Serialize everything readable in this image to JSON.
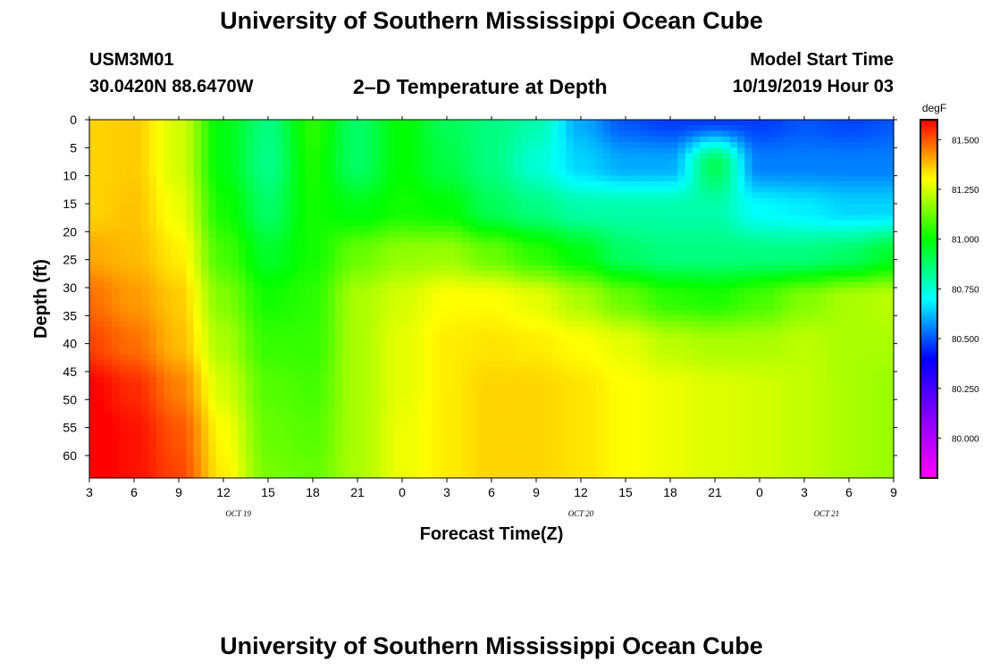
{
  "header": {
    "title_top": "University of Southern Mississippi Ocean Cube",
    "title_bottom": "University of Southern Mississippi Ocean Cube",
    "station_id": "USM3M01",
    "location": "30.0420N 88.6470W",
    "plot_title": "2–D Temperature at Depth",
    "model_label": "Model Start Time",
    "model_start": "10/19/2019 Hour 03"
  },
  "chart_data": {
    "type": "heatmap",
    "title": "2–D Temperature at Depth",
    "xlabel": "Forecast Time(Z)",
    "ylabel": "Depth (ft)",
    "x_tick_labels": [
      "3",
      "6",
      "9",
      "12",
      "15",
      "18",
      "21",
      "0",
      "3",
      "6",
      "9",
      "12",
      "15",
      "18",
      "21",
      "0",
      "3",
      "6",
      "9"
    ],
    "x_hours_from_start": [
      0,
      3,
      6,
      9,
      12,
      15,
      18,
      21,
      24,
      27,
      30,
      33,
      36,
      39,
      42,
      45,
      48,
      51,
      54
    ],
    "date_labels": [
      {
        "text": "OCT 19",
        "hour": 10
      },
      {
        "text": "OCT 20",
        "hour": 33
      },
      {
        "text": "OCT 21",
        "hour": 49.5
      }
    ],
    "y_ticks": [
      0,
      5,
      10,
      15,
      20,
      25,
      30,
      35,
      40,
      45,
      50,
      55,
      60
    ],
    "ylim": [
      0,
      64
    ],
    "xlim": [
      0,
      54
    ],
    "colorbar": {
      "unit": "degF",
      "range": [
        79.8,
        81.6
      ],
      "ticks": [
        80.0,
        80.25,
        80.5,
        80.75,
        81.0,
        81.25,
        81.5
      ],
      "tick_labels": [
        "80.000",
        "80.250",
        "80.500",
        "80.750",
        "81.000",
        "81.250",
        "81.500"
      ],
      "colors": [
        "#ff00ff",
        "#8800ff",
        "#0000ff",
        "#00ffff",
        "#00ff00",
        "#ffff00",
        "#ff0000"
      ]
    },
    "depths_ft": [
      0,
      8,
      16,
      24,
      32,
      40,
      48,
      56,
      64
    ],
    "temperature_grid": [
      [
        81.35,
        81.36,
        81.25,
        80.98,
        80.85,
        81.05,
        80.88,
        81.0,
        80.9,
        80.85,
        80.8,
        80.6,
        80.5,
        80.47,
        80.47,
        80.47,
        80.5,
        80.48,
        80.5
      ],
      [
        81.35,
        81.36,
        81.25,
        80.98,
        80.84,
        81.03,
        80.88,
        81.0,
        80.92,
        80.85,
        80.75,
        80.65,
        80.6,
        80.6,
        80.9,
        80.55,
        80.55,
        80.55,
        80.55
      ],
      [
        81.35,
        81.37,
        81.28,
        81.02,
        80.88,
        81.02,
        80.98,
        81.02,
        81.0,
        80.9,
        80.85,
        80.8,
        80.8,
        80.8,
        80.8,
        80.7,
        80.68,
        80.65,
        80.65
      ],
      [
        81.4,
        81.38,
        81.32,
        81.08,
        80.95,
        81.02,
        81.12,
        81.17,
        81.18,
        81.12,
        81.05,
        80.98,
        80.88,
        80.85,
        80.85,
        80.85,
        80.85,
        80.88,
        80.95
      ],
      [
        81.47,
        81.42,
        81.36,
        81.15,
        81.02,
        81.05,
        81.2,
        81.25,
        81.3,
        81.3,
        81.27,
        81.2,
        81.12,
        81.05,
        81.03,
        81.08,
        81.15,
        81.2,
        81.22
      ],
      [
        81.52,
        81.47,
        81.38,
        81.2,
        81.06,
        81.06,
        81.2,
        81.27,
        81.32,
        81.33,
        81.32,
        81.3,
        81.27,
        81.22,
        81.2,
        81.2,
        81.22,
        81.2,
        81.2
      ],
      [
        81.6,
        81.55,
        81.45,
        81.25,
        81.1,
        81.08,
        81.2,
        81.27,
        81.32,
        81.35,
        81.35,
        81.33,
        81.3,
        81.28,
        81.26,
        81.25,
        81.23,
        81.2,
        81.18
      ],
      [
        81.62,
        81.58,
        81.5,
        81.3,
        81.12,
        81.1,
        81.2,
        81.28,
        81.32,
        81.35,
        81.35,
        81.33,
        81.3,
        81.28,
        81.26,
        81.25,
        81.23,
        81.2,
        81.18
      ],
      [
        81.62,
        81.58,
        81.52,
        81.32,
        81.14,
        81.12,
        81.2,
        81.28,
        81.32,
        81.35,
        81.35,
        81.33,
        81.3,
        81.28,
        81.26,
        81.25,
        81.23,
        81.2,
        81.18
      ]
    ]
  }
}
